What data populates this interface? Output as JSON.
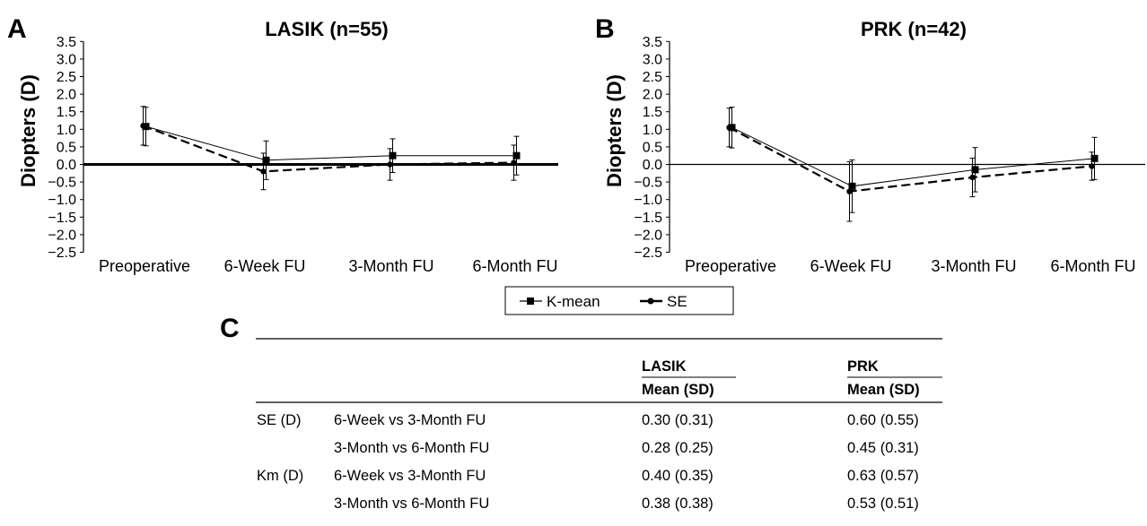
{
  "panels": {
    "a_letter": "A",
    "b_letter": "B",
    "c_letter": "C"
  },
  "legend": {
    "items": [
      {
        "label": "K-mean",
        "marker": "square",
        "line": "solid"
      },
      {
        "label": "SE",
        "marker": "circle",
        "line": "dashed"
      }
    ]
  },
  "chart_data": [
    {
      "type": "line",
      "title": "LASIK (n=55)",
      "xlabel": "",
      "ylabel": "Diopters (D)",
      "categories": [
        "Preoperative",
        "6-Week FU",
        "3-Month FU",
        "6-Month FU"
      ],
      "ylim": [
        -2.5,
        3.5
      ],
      "yticks": [
        "3.5",
        "3.0",
        "2.5",
        "2.0",
        "1.5",
        "1.0",
        "0.5",
        "0.0",
        "−0.5",
        "−1.0",
        "−1.5",
        "−2.0",
        "−2.5"
      ],
      "ytick_values": [
        3.5,
        3.0,
        2.5,
        2.0,
        1.5,
        1.0,
        0.5,
        0.0,
        -0.5,
        -1.0,
        -1.5,
        -2.0,
        -2.5
      ],
      "zero_line_bold": true,
      "series": [
        {
          "name": "K-mean",
          "values": [
            1.08,
            0.12,
            0.25,
            0.25
          ],
          "err": [
            0.55,
            0.55,
            0.48,
            0.55
          ],
          "style": "solid",
          "marker": "square"
        },
        {
          "name": "SE",
          "values": [
            1.1,
            -0.2,
            0.0,
            0.05
          ],
          "err": [
            0.55,
            0.52,
            0.45,
            0.5
          ],
          "style": "dashed",
          "marker": "circle"
        }
      ]
    },
    {
      "type": "line",
      "title": "PRK (n=42)",
      "xlabel": "",
      "ylabel": "Diopters (D)",
      "categories": [
        "Preoperative",
        "6-Week FU",
        "3-Month FU",
        "6-Month FU"
      ],
      "ylim": [
        -2.5,
        3.5
      ],
      "yticks": [
        "3.5",
        "3.0",
        "2.5",
        "2.0",
        "1.5",
        "1.0",
        "0.5",
        "0.0",
        "−0.5",
        "−1.0",
        "−1.5",
        "−2.0",
        "−2.5"
      ],
      "ytick_values": [
        3.5,
        3.0,
        2.5,
        2.0,
        1.5,
        1.0,
        0.5,
        0.0,
        -0.5,
        -1.0,
        -1.5,
        -2.0,
        -2.5
      ],
      "zero_line_bold": false,
      "series": [
        {
          "name": "K-mean",
          "values": [
            1.05,
            -0.62,
            -0.15,
            0.17
          ],
          "err": [
            0.58,
            0.75,
            0.63,
            0.6
          ],
          "style": "solid",
          "marker": "square"
        },
        {
          "name": "SE",
          "values": [
            1.05,
            -0.77,
            -0.37,
            -0.05
          ],
          "err": [
            0.55,
            0.85,
            0.55,
            0.4
          ],
          "style": "dashed",
          "marker": "circle"
        }
      ]
    },
    {
      "type": "table",
      "columns": [
        "LASIK",
        "PRK"
      ],
      "subcolumns": [
        "Mean (SD)",
        "Mean (SD)"
      ],
      "rows": [
        {
          "group": "SE (D)",
          "comparison": "6-Week vs 3-Month FU",
          "lasik": "0.30 (0.31)",
          "prk": "0.60 (0.55)"
        },
        {
          "group": "",
          "comparison": "3-Month vs 6-Month FU",
          "lasik": "0.28 (0.25)",
          "prk": "0.45 (0.31)"
        },
        {
          "group": "Km (D)",
          "comparison": "6-Week vs 3-Month FU",
          "lasik": "0.40 (0.35)",
          "prk": "0.63 (0.57)"
        },
        {
          "group": "",
          "comparison": "3-Month vs 6-Month FU",
          "lasik": "0.38 (0.38)",
          "prk": "0.53 (0.51)"
        }
      ]
    }
  ]
}
